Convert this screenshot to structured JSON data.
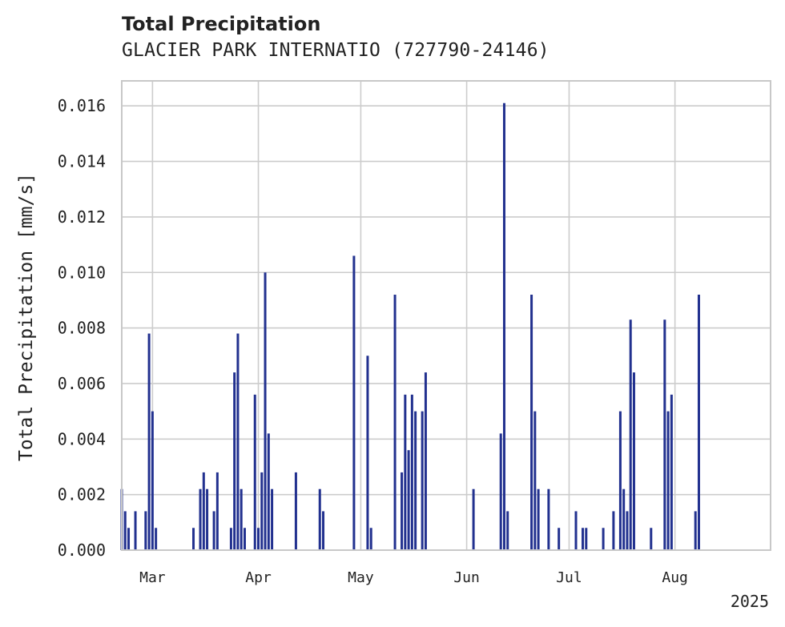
{
  "chart_data": {
    "type": "bar",
    "title": "Total Precipitation",
    "subtitle": "GLACIER PARK INTERNATIO (727790-24146)",
    "xlabel": "",
    "ylabel": "Total Precipitation [mm/s]",
    "x_tick_labels": [
      "Mar",
      "Apr",
      "May",
      "Jun",
      "Jul",
      "Aug"
    ],
    "x_offset_label": "2025",
    "y_tick_labels": [
      "0.000",
      "0.002",
      "0.004",
      "0.006",
      "0.008",
      "0.010",
      "0.012",
      "0.014",
      "0.016"
    ],
    "ylim": [
      0,
      0.0169
    ],
    "xlim": [
      "2025-02-20",
      "2025-08-29"
    ],
    "grid": true,
    "bar_color": "#22318f",
    "series": [
      {
        "x": [
          "2025-02-20",
          "2025-02-21",
          "2025-02-22",
          "2025-02-24",
          "2025-02-27",
          "2025-02-28",
          "2025-03-01",
          "2025-03-02",
          "2025-03-13",
          "2025-03-15",
          "2025-03-16",
          "2025-03-17",
          "2025-03-19",
          "2025-03-20",
          "2025-03-24",
          "2025-03-25",
          "2025-03-26",
          "2025-03-27",
          "2025-03-28",
          "2025-03-31",
          "2025-04-01",
          "2025-04-02",
          "2025-04-03",
          "2025-04-04",
          "2025-04-05",
          "2025-04-12",
          "2025-04-19",
          "2025-04-20",
          "2025-04-29",
          "2025-05-03",
          "2025-05-04",
          "2025-05-11",
          "2025-05-13",
          "2025-05-14",
          "2025-05-15",
          "2025-05-16",
          "2025-05-17",
          "2025-05-19",
          "2025-05-20",
          "2025-06-03",
          "2025-06-11",
          "2025-06-12",
          "2025-06-13",
          "2025-06-20",
          "2025-06-21",
          "2025-06-22",
          "2025-06-25",
          "2025-06-28",
          "2025-07-03",
          "2025-07-05",
          "2025-07-06",
          "2025-07-11",
          "2025-07-14",
          "2025-07-16",
          "2025-07-17",
          "2025-07-18",
          "2025-07-19",
          "2025-07-20",
          "2025-07-25",
          "2025-07-29",
          "2025-07-30",
          "2025-07-31",
          "2025-08-07",
          "2025-08-08"
        ],
        "values": [
          0.0022,
          0.0014,
          0.0008,
          0.0014,
          0.0014,
          0.0078,
          0.005,
          0.0008,
          0.0008,
          0.0022,
          0.0028,
          0.0022,
          0.0014,
          0.0028,
          0.0008,
          0.0064,
          0.0078,
          0.0022,
          0.0008,
          0.0056,
          0.0008,
          0.0028,
          0.01,
          0.0042,
          0.0022,
          0.0028,
          0.0022,
          0.0014,
          0.0106,
          0.007,
          0.0008,
          0.0092,
          0.0028,
          0.0056,
          0.0036,
          0.0056,
          0.005,
          0.005,
          0.0064,
          0.0022,
          0.0042,
          0.0161,
          0.0014,
          0.0092,
          0.005,
          0.0022,
          0.0022,
          0.0008,
          0.0014,
          0.0008,
          0.0008,
          0.0008,
          0.0014,
          0.005,
          0.0022,
          0.0014,
          0.0083,
          0.0064,
          0.0008,
          0.0083,
          0.005,
          0.0056,
          0.0014,
          0.0092
        ]
      }
    ]
  }
}
